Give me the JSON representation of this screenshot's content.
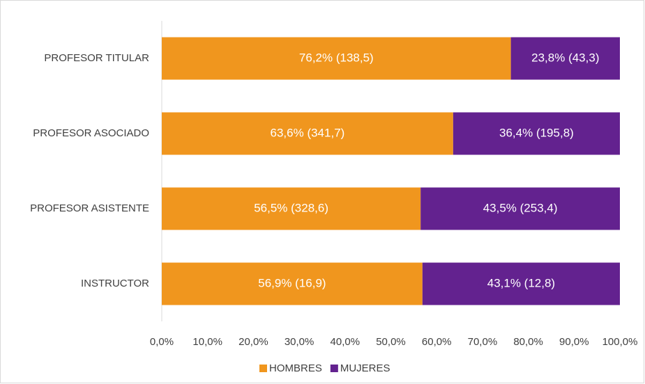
{
  "chart_data": {
    "type": "bar",
    "orientation": "horizontal",
    "stacked": true,
    "categories": [
      "PROFESOR TITULAR",
      "PROFESOR ASOCIADO",
      "PROFESOR ASISTENTE",
      "INSTRUCTOR"
    ],
    "series": [
      {
        "name": "HOMBRES",
        "color": "#f0961e",
        "values": [
          76.2,
          63.6,
          56.5,
          56.9
        ],
        "value_labels": [
          "76,2% (138,5)",
          "63,6% (341,7)",
          "56,5% (328,6)",
          "56,9% (16,9)"
        ]
      },
      {
        "name": "MUJERES",
        "color": "#63228f",
        "values": [
          23.8,
          36.4,
          43.5,
          43.1
        ],
        "value_labels": [
          "23,8% (43,3)",
          "36,4% (195,8)",
          "43,5% (253,4)",
          "43,1% (12,8)"
        ]
      }
    ],
    "xlim": [
      0,
      100
    ],
    "xticks": [
      {
        "value": 0,
        "label": "0,0%"
      },
      {
        "value": 10,
        "label": "10,0%"
      },
      {
        "value": 20,
        "label": "20,0%"
      },
      {
        "value": 30,
        "label": "30,0%"
      },
      {
        "value": 40,
        "label": "40,0%"
      },
      {
        "value": 50,
        "label": "50,0%"
      },
      {
        "value": 60,
        "label": "60,0%"
      },
      {
        "value": 70,
        "label": "70,0%"
      },
      {
        "value": 80,
        "label": "80,0%"
      },
      {
        "value": 90,
        "label": "90,0%"
      },
      {
        "value": 100,
        "label": "100,0%"
      }
    ],
    "grid": false,
    "legend": "bottom"
  }
}
